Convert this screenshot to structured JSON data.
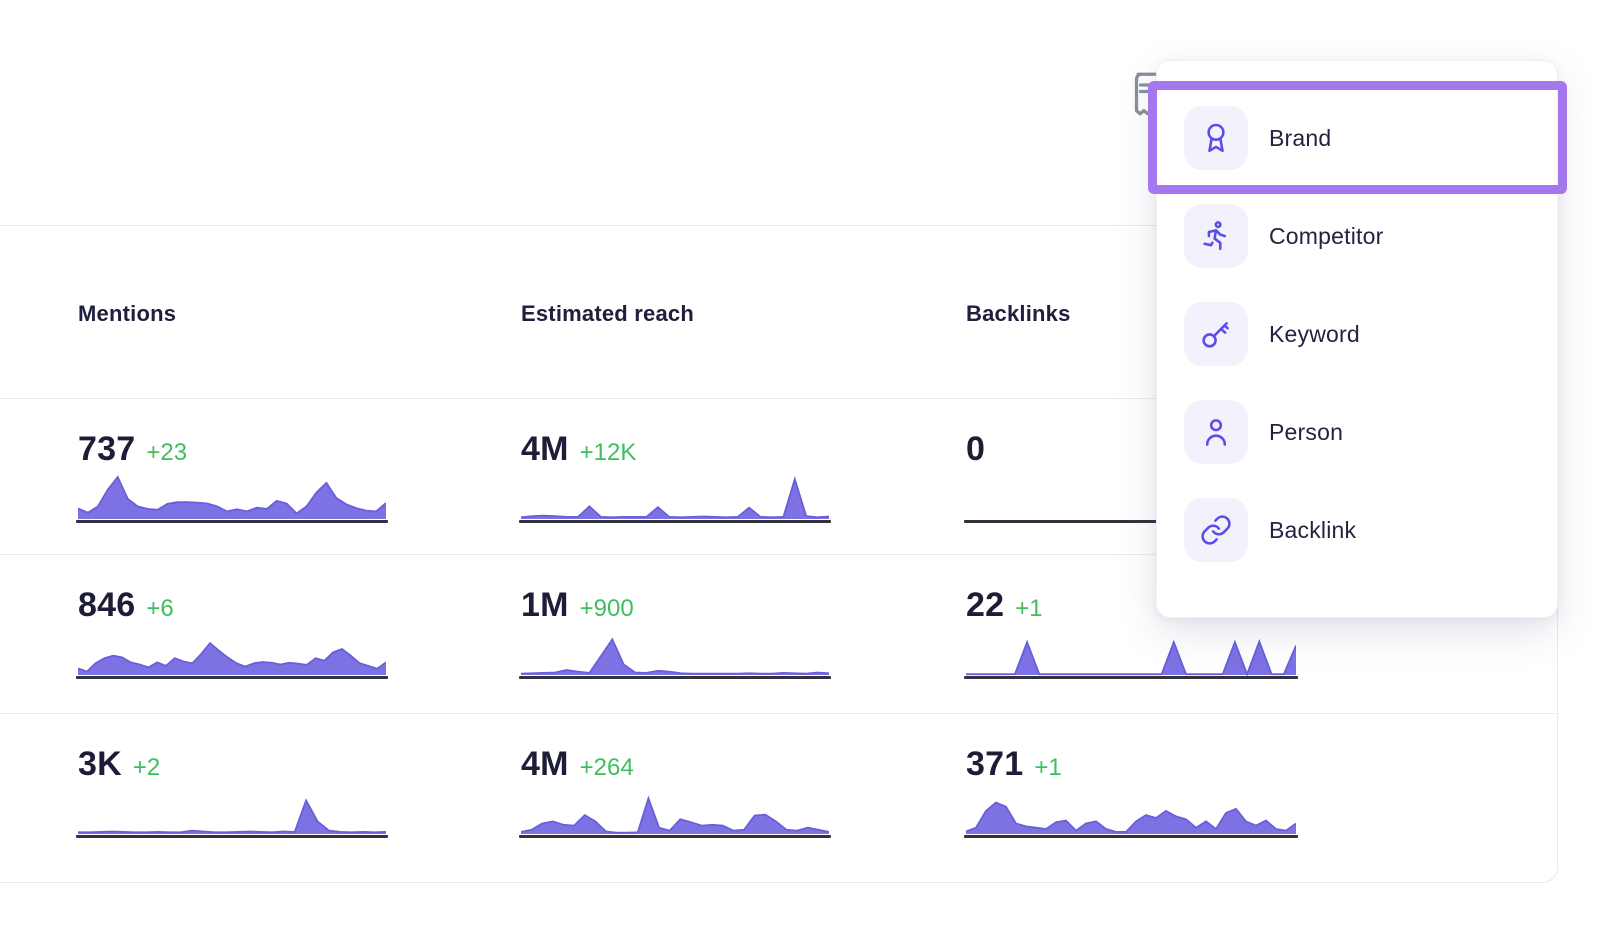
{
  "page": {
    "background": "#ffffff"
  },
  "note_icon": {
    "name": "receipt-icon",
    "color": "#8A8F9B"
  },
  "dropdown": {
    "icon_color": "#5A4DE8",
    "icon_tile_bg": "#F2F1FC",
    "highlight_color": "#A478EC",
    "items": [
      {
        "label": "Brand",
        "icon": "award-icon",
        "highlighted": true
      },
      {
        "label": "Competitor",
        "icon": "runner-icon",
        "highlighted": false
      },
      {
        "label": "Keyword",
        "icon": "key-icon",
        "highlighted": false
      },
      {
        "label": "Person",
        "icon": "person-icon",
        "highlighted": false
      },
      {
        "label": "Backlink",
        "icon": "link-icon",
        "highlighted": false
      }
    ]
  },
  "table": {
    "columns": [
      "Mentions",
      "Estimated reach",
      "Backlinks"
    ],
    "value_color": "#1D1D38",
    "delta_color": "#3FBE5F",
    "spark_fill": "#7C72E4",
    "spark_line": "#6A5ED9",
    "baseline_color": "#32323F",
    "rows": [
      {
        "cells": [
          {
            "value": "737",
            "delta": "+23",
            "spark": [
              0.25,
              0.15,
              0.3,
              0.7,
              1.0,
              0.48,
              0.3,
              0.24,
              0.22,
              0.36,
              0.4,
              0.4,
              0.39,
              0.37,
              0.3,
              0.18,
              0.23,
              0.18,
              0.27,
              0.24,
              0.43,
              0.37,
              0.13,
              0.3,
              0.63,
              0.86,
              0.5,
              0.35,
              0.26,
              0.2,
              0.18,
              0.38
            ]
          },
          {
            "value": "4M",
            "delta": "+12K",
            "spark": [
              0.04,
              0.07,
              0.08,
              0.07,
              0.05,
              0.05,
              0.3,
              0.05,
              0.04,
              0.05,
              0.05,
              0.05,
              0.28,
              0.05,
              0.04,
              0.05,
              0.06,
              0.05,
              0.04,
              0.05,
              0.27,
              0.05,
              0.04,
              0.05,
              0.95,
              0.07,
              0.04,
              0.06
            ]
          },
          {
            "value": "0",
            "delta": "",
            "spark": []
          }
        ]
      },
      {
        "cells": [
          {
            "value": "846",
            "delta": "+6",
            "spark": [
              0.16,
              0.08,
              0.28,
              0.4,
              0.46,
              0.42,
              0.3,
              0.25,
              0.18,
              0.3,
              0.22,
              0.4,
              0.32,
              0.28,
              0.5,
              0.76,
              0.58,
              0.42,
              0.28,
              0.2,
              0.28,
              0.31,
              0.29,
              0.25,
              0.29,
              0.27,
              0.24,
              0.4,
              0.34,
              0.54,
              0.62,
              0.46,
              0.28,
              0.22,
              0.15,
              0.3
            ]
          },
          {
            "value": "1M",
            "delta": "+900",
            "spark": [
              0.03,
              0.04,
              0.05,
              0.06,
              0.12,
              0.08,
              0.05,
              0.45,
              0.85,
              0.25,
              0.06,
              0.05,
              0.1,
              0.08,
              0.04,
              0.03,
              0.03,
              0.03,
              0.03,
              0.03,
              0.04,
              0.03,
              0.03,
              0.05,
              0.04,
              0.03,
              0.06,
              0.04
            ]
          },
          {
            "value": "22",
            "delta": "+1",
            "spark": [
              0.02,
              0.02,
              0.02,
              0.02,
              0.02,
              0.78,
              0.02,
              0.02,
              0.02,
              0.02,
              0.02,
              0.02,
              0.02,
              0.02,
              0.02,
              0.02,
              0.02,
              0.78,
              0.02,
              0.02,
              0.02,
              0.02,
              0.78,
              0.02,
              0.8,
              0.02,
              0.02,
              0.7
            ]
          }
        ]
      },
      {
        "cells": [
          {
            "value": "3K",
            "delta": "+2",
            "spark": [
              0.04,
              0.04,
              0.05,
              0.06,
              0.05,
              0.04,
              0.04,
              0.05,
              0.04,
              0.04,
              0.08,
              0.06,
              0.04,
              0.04,
              0.05,
              0.06,
              0.05,
              0.04,
              0.06,
              0.05,
              0.8,
              0.3,
              0.08,
              0.05,
              0.04,
              0.05,
              0.04,
              0.05
            ]
          },
          {
            "value": "4M",
            "delta": "+264",
            "spark": [
              0.05,
              0.1,
              0.25,
              0.3,
              0.22,
              0.2,
              0.45,
              0.3,
              0.06,
              0.03,
              0.03,
              0.04,
              0.85,
              0.15,
              0.08,
              0.35,
              0.28,
              0.2,
              0.22,
              0.2,
              0.08,
              0.1,
              0.44,
              0.46,
              0.3,
              0.1,
              0.08,
              0.15,
              0.1,
              0.05
            ]
          },
          {
            "value": "371",
            "delta": "+1",
            "spark": [
              0.06,
              0.15,
              0.55,
              0.75,
              0.65,
              0.25,
              0.18,
              0.15,
              0.12,
              0.28,
              0.32,
              0.08,
              0.25,
              0.3,
              0.12,
              0.05,
              0.05,
              0.3,
              0.45,
              0.38,
              0.55,
              0.42,
              0.35,
              0.15,
              0.3,
              0.12,
              0.5,
              0.6,
              0.3,
              0.2,
              0.32,
              0.12,
              0.08,
              0.25
            ]
          }
        ]
      }
    ]
  }
}
